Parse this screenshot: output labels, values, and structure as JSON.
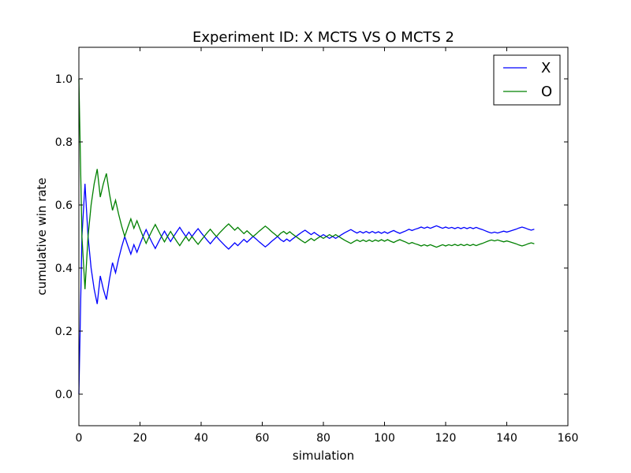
{
  "chart_data": {
    "type": "line",
    "title": "Experiment ID: X MCTS VS O MCTS 2",
    "xlabel": "simulation",
    "ylabel": "cumulative win rate",
    "xlim": [
      0,
      160
    ],
    "ylim": [
      -0.1,
      1.1
    ],
    "xticks": [
      0,
      20,
      40,
      60,
      80,
      100,
      120,
      140,
      160
    ],
    "yticks": [
      0.0,
      0.2,
      0.4,
      0.6,
      0.8,
      1.0
    ],
    "xtick_labels": [
      "0",
      "20",
      "40",
      "60",
      "80",
      "100",
      "120",
      "140",
      "160"
    ],
    "ytick_labels": [
      "0.0",
      "0.2",
      "0.4",
      "0.6",
      "0.8",
      "1.0"
    ],
    "grid": false,
    "legend_position": "top-right",
    "series": [
      {
        "name": "X",
        "color": "#0000ff",
        "x": [
          0,
          1,
          2,
          3,
          4,
          5,
          6,
          7,
          8,
          9,
          10,
          11,
          12,
          13,
          14,
          15,
          16,
          17,
          18,
          19,
          20,
          21,
          22,
          23,
          24,
          25,
          26,
          27,
          28,
          29,
          30,
          31,
          32,
          33,
          34,
          35,
          36,
          37,
          38,
          39,
          40,
          41,
          42,
          43,
          44,
          45,
          46,
          47,
          48,
          49,
          50,
          51,
          52,
          53,
          54,
          55,
          56,
          57,
          58,
          59,
          60,
          61,
          62,
          63,
          64,
          65,
          66,
          67,
          68,
          69,
          70,
          71,
          72,
          73,
          74,
          75,
          76,
          77,
          78,
          79,
          80,
          81,
          82,
          83,
          84,
          85,
          86,
          87,
          88,
          89,
          90,
          91,
          92,
          93,
          94,
          95,
          96,
          97,
          98,
          99,
          100,
          101,
          102,
          103,
          104,
          105,
          106,
          107,
          108,
          109,
          110,
          111,
          112,
          113,
          114,
          115,
          116,
          117,
          118,
          119,
          120,
          121,
          122,
          123,
          124,
          125,
          126,
          127,
          128,
          129,
          130,
          131,
          132,
          133,
          134,
          135,
          136,
          137,
          138,
          139,
          140,
          141,
          142,
          143,
          144,
          145,
          146,
          147,
          148,
          149
        ],
        "y": [
          0.0,
          0.5,
          0.667,
          0.5,
          0.4,
          0.333,
          0.286,
          0.375,
          0.333,
          0.3,
          0.364,
          0.417,
          0.385,
          0.429,
          0.467,
          0.5,
          0.471,
          0.444,
          0.474,
          0.45,
          0.476,
          0.5,
          0.522,
          0.5,
          0.48,
          0.462,
          0.481,
          0.5,
          0.517,
          0.5,
          0.484,
          0.5,
          0.515,
          0.529,
          0.514,
          0.5,
          0.514,
          0.5,
          0.513,
          0.525,
          0.512,
          0.5,
          0.488,
          0.477,
          0.489,
          0.5,
          0.489,
          0.479,
          0.469,
          0.46,
          0.47,
          0.48,
          0.471,
          0.481,
          0.491,
          0.482,
          0.491,
          0.5,
          0.492,
          0.483,
          0.475,
          0.467,
          0.475,
          0.484,
          0.492,
          0.5,
          0.49,
          0.484,
          0.492,
          0.485,
          0.493,
          0.5,
          0.507,
          0.514,
          0.52,
          0.513,
          0.506,
          0.513,
          0.506,
          0.5,
          0.506,
          0.5,
          0.494,
          0.5,
          0.494,
          0.5,
          0.506,
          0.512,
          0.517,
          0.522,
          0.516,
          0.511,
          0.516,
          0.511,
          0.516,
          0.511,
          0.516,
          0.511,
          0.515,
          0.51,
          0.515,
          0.51,
          0.515,
          0.519,
          0.514,
          0.51,
          0.514,
          0.518,
          0.523,
          0.519,
          0.523,
          0.526,
          0.53,
          0.526,
          0.53,
          0.526,
          0.53,
          0.534,
          0.53,
          0.526,
          0.53,
          0.526,
          0.529,
          0.525,
          0.529,
          0.525,
          0.529,
          0.525,
          0.529,
          0.525,
          0.529,
          0.525,
          0.522,
          0.518,
          0.514,
          0.511,
          0.514,
          0.511,
          0.514,
          0.517,
          0.514,
          0.517,
          0.52,
          0.523,
          0.527,
          0.53,
          0.527,
          0.523,
          0.52,
          0.523
        ]
      },
      {
        "name": "O",
        "color": "#008000",
        "x": [
          0,
          1,
          2,
          3,
          4,
          5,
          6,
          7,
          8,
          9,
          10,
          11,
          12,
          13,
          14,
          15,
          16,
          17,
          18,
          19,
          20,
          21,
          22,
          23,
          24,
          25,
          26,
          27,
          28,
          29,
          30,
          31,
          32,
          33,
          34,
          35,
          36,
          37,
          38,
          39,
          40,
          41,
          42,
          43,
          44,
          45,
          46,
          47,
          48,
          49,
          50,
          51,
          52,
          53,
          54,
          55,
          56,
          57,
          58,
          59,
          60,
          61,
          62,
          63,
          64,
          65,
          66,
          67,
          68,
          69,
          70,
          71,
          72,
          73,
          74,
          75,
          76,
          77,
          78,
          79,
          80,
          81,
          82,
          83,
          84,
          85,
          86,
          87,
          88,
          89,
          90,
          91,
          92,
          93,
          94,
          95,
          96,
          97,
          98,
          99,
          100,
          101,
          102,
          103,
          104,
          105,
          106,
          107,
          108,
          109,
          110,
          111,
          112,
          113,
          114,
          115,
          116,
          117,
          118,
          119,
          120,
          121,
          122,
          123,
          124,
          125,
          126,
          127,
          128,
          129,
          130,
          131,
          132,
          133,
          134,
          135,
          136,
          137,
          138,
          139,
          140,
          141,
          142,
          143,
          144,
          145,
          146,
          147,
          148,
          149
        ],
        "y": [
          1.0,
          0.5,
          0.333,
          0.5,
          0.6,
          0.667,
          0.714,
          0.625,
          0.667,
          0.7,
          0.636,
          0.583,
          0.615,
          0.571,
          0.533,
          0.5,
          0.529,
          0.556,
          0.526,
          0.55,
          0.524,
          0.5,
          0.478,
          0.5,
          0.52,
          0.538,
          0.519,
          0.5,
          0.483,
          0.5,
          0.516,
          0.5,
          0.485,
          0.471,
          0.486,
          0.5,
          0.486,
          0.5,
          0.487,
          0.475,
          0.488,
          0.5,
          0.512,
          0.523,
          0.511,
          0.5,
          0.511,
          0.521,
          0.531,
          0.54,
          0.53,
          0.52,
          0.529,
          0.519,
          0.509,
          0.518,
          0.509,
          0.5,
          0.508,
          0.517,
          0.525,
          0.533,
          0.525,
          0.516,
          0.508,
          0.5,
          0.51,
          0.516,
          0.508,
          0.515,
          0.507,
          0.5,
          0.493,
          0.486,
          0.48,
          0.487,
          0.494,
          0.487,
          0.494,
          0.5,
          0.494,
          0.5,
          0.506,
          0.5,
          0.506,
          0.5,
          0.494,
          0.488,
          0.483,
          0.478,
          0.484,
          0.489,
          0.484,
          0.489,
          0.484,
          0.489,
          0.484,
          0.489,
          0.485,
          0.49,
          0.485,
          0.49,
          0.485,
          0.481,
          0.486,
          0.49,
          0.486,
          0.482,
          0.477,
          0.481,
          0.477,
          0.474,
          0.47,
          0.474,
          0.47,
          0.474,
          0.47,
          0.466,
          0.47,
          0.474,
          0.47,
          0.474,
          0.471,
          0.475,
          0.471,
          0.475,
          0.471,
          0.475,
          0.471,
          0.475,
          0.471,
          0.475,
          0.478,
          0.482,
          0.486,
          0.489,
          0.486,
          0.489,
          0.486,
          0.483,
          0.486,
          0.483,
          0.48,
          0.477,
          0.473,
          0.47,
          0.473,
          0.477,
          0.48,
          0.477
        ]
      }
    ]
  }
}
